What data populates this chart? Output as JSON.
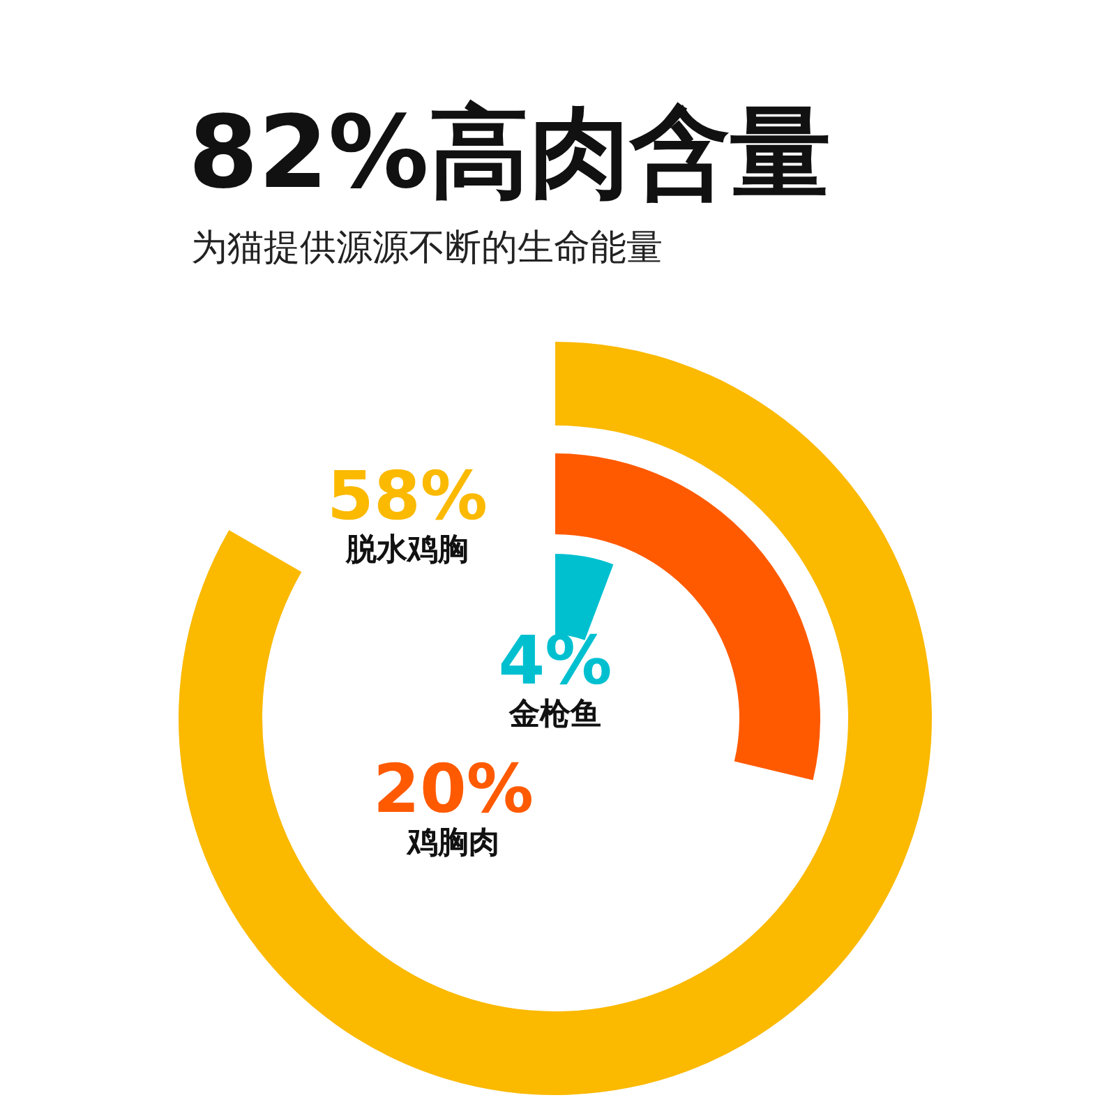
{
  "chart_data": {
    "type": "other",
    "title": "82%高肉含量",
    "subtitle": "为猫提供源源不断的生命能量",
    "categories": [
      "脱水鸡胸",
      "鸡胸肉",
      "金枪鱼"
    ],
    "values": [
      58,
      20,
      4
    ],
    "value_labels": [
      "58%",
      "20%",
      "4%"
    ],
    "colors": [
      "#fbb900",
      "#ff5a00",
      "#00c0d0"
    ]
  }
}
